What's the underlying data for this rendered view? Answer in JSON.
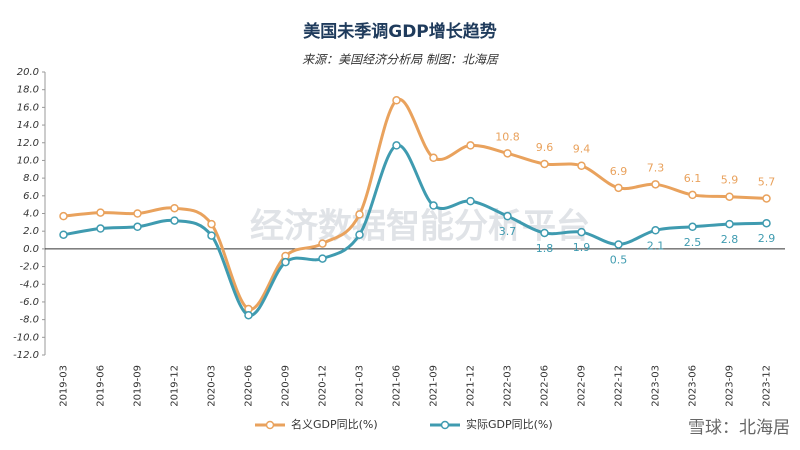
{
  "chart_data": {
    "type": "line",
    "title": "美国未季调GDP增长趋势",
    "subtitle": "来源：美国经济分析局 制图：北海居",
    "watermark": "经济数据智能分析平台",
    "footer": "雪球：北海居",
    "categories": [
      "2019-03",
      "2019-06",
      "2019-09",
      "2019-12",
      "2020-03",
      "2020-06",
      "2020-09",
      "2020-12",
      "2021-03",
      "2021-06",
      "2021-09",
      "2021-12",
      "2022-03",
      "2022-06",
      "2022-09",
      "2022-12",
      "2023-03",
      "2023-06",
      "2023-09",
      "2023-12"
    ],
    "series": [
      {
        "name": "名义GDP同比(%)",
        "color": "#e9a25d",
        "values": [
          3.7,
          4.1,
          4.0,
          4.6,
          2.8,
          -6.8,
          -0.8,
          0.6,
          3.9,
          16.8,
          10.3,
          11.7,
          10.8,
          9.6,
          9.4,
          6.9,
          7.3,
          6.1,
          5.9,
          5.7
        ],
        "value_labels": [
          null,
          null,
          null,
          null,
          null,
          null,
          null,
          null,
          null,
          null,
          null,
          null,
          "10.8",
          "9.6",
          "9.4",
          "6.9",
          "7.3",
          "6.1",
          "5.9",
          "5.7"
        ]
      },
      {
        "name": "实际GDP同比(%)",
        "color": "#3f9bb0",
        "values": [
          1.6,
          2.3,
          2.5,
          3.2,
          1.5,
          -7.5,
          -1.5,
          -1.1,
          1.6,
          11.7,
          4.9,
          5.4,
          3.7,
          1.8,
          1.9,
          0.5,
          2.1,
          2.5,
          2.8,
          2.9
        ],
        "value_labels": [
          null,
          null,
          null,
          null,
          null,
          null,
          null,
          null,
          null,
          null,
          null,
          null,
          "3.7",
          "1.8",
          "1.9",
          "0.5",
          "2.1",
          "2.5",
          "2.8",
          "2.9"
        ]
      }
    ],
    "ylim": [
      -12,
      20
    ],
    "yticks": [
      {
        "value": 20,
        "label": "20.0"
      },
      {
        "value": 18,
        "label": "18.0"
      },
      {
        "value": 16,
        "label": "16.0"
      },
      {
        "value": 14,
        "label": "14.0"
      },
      {
        "value": 12,
        "label": "12.0"
      },
      {
        "value": 10,
        "label": "10.0"
      },
      {
        "value": 8,
        "label": "8.0"
      },
      {
        "value": 6,
        "label": "6.0"
      },
      {
        "value": 4,
        "label": "4.0"
      },
      {
        "value": 2,
        "label": "2.0"
      },
      {
        "value": 0,
        "label": "0.0"
      },
      {
        "value": -2,
        "label": "-2.0"
      },
      {
        "value": -4,
        "label": "-4.0"
      },
      {
        "value": -6,
        "label": "-6.0"
      },
      {
        "value": -8,
        "label": "-8.0"
      },
      {
        "value": -10,
        "label": "-10.0"
      },
      {
        "value": -12,
        "label": "-12.0"
      }
    ]
  }
}
